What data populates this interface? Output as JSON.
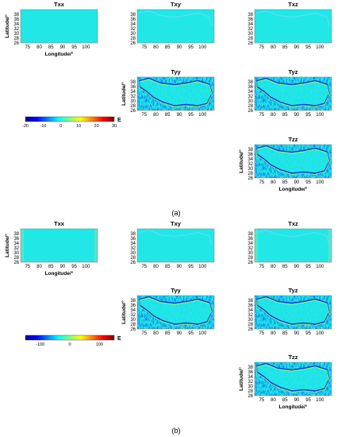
{
  "chart_data": [
    {
      "type": "heatmap",
      "part": "(a)",
      "title": "",
      "xlabel": "Longitude/°",
      "ylabel": "Latitude/°",
      "xlim": [
        72,
        105
      ],
      "ylim": [
        26,
        40
      ],
      "xticks": [
        "75",
        "80",
        "85",
        "90",
        "95",
        "100"
      ],
      "yticks": [
        "26",
        "28",
        "30",
        "32",
        "34",
        "36",
        "38"
      ],
      "panels": [
        "Txx",
        "Txy",
        "Txz",
        "Tyy",
        "Tyz",
        "Tzz"
      ],
      "colorbar": {
        "unit": "E",
        "min": -20,
        "max": 30,
        "ticks": [
          "-20",
          "-10",
          "0",
          "10",
          "20",
          "30"
        ]
      }
    },
    {
      "type": "heatmap",
      "part": "(b)",
      "title": "",
      "xlabel": "Longitude/°",
      "ylabel": "Latitude/°",
      "xlim": [
        72,
        105
      ],
      "ylim": [
        26,
        40
      ],
      "xticks": [
        "75",
        "80",
        "85",
        "90",
        "95",
        "100"
      ],
      "yticks": [
        "26",
        "28",
        "30",
        "32",
        "34",
        "36",
        "38"
      ],
      "panels": [
        "Txx",
        "Txy",
        "Txz",
        "Tyy",
        "Tyz",
        "Tzz"
      ],
      "colorbar": {
        "unit": "E",
        "min": -150,
        "max": 150,
        "ticks": [
          "-100",
          "0",
          "100"
        ]
      }
    }
  ],
  "colormap": [
    "#00008f",
    "#0000ff",
    "#0080ff",
    "#00ffff",
    "#80ff80",
    "#ffff00",
    "#ff8000",
    "#ff0000",
    "#800000"
  ],
  "base_color": "#21e8e6",
  "captions": {
    "a": "(a)",
    "b": "(b)"
  }
}
